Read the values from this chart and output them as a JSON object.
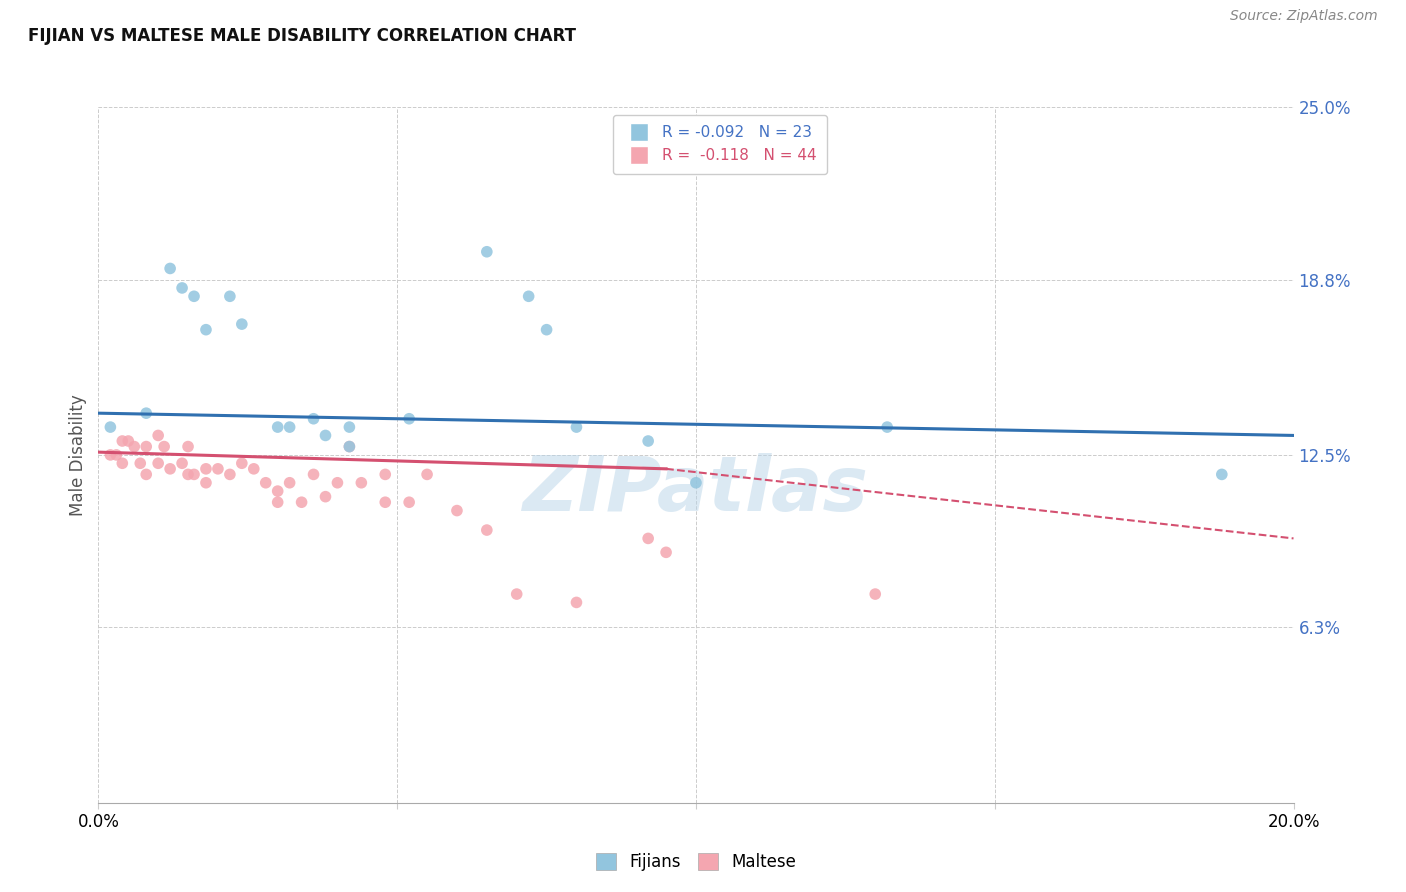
{
  "title": "FIJIAN VS MALTESE MALE DISABILITY CORRELATION CHART",
  "source": "Source: ZipAtlas.com",
  "ylabel": "Male Disability",
  "xlim": [
    0.0,
    0.2
  ],
  "ylim": [
    0.0,
    0.25
  ],
  "yticks": [
    0.063,
    0.125,
    0.188,
    0.25
  ],
  "ytick_labels": [
    "6.3%",
    "12.5%",
    "18.8%",
    "25.0%"
  ],
  "xticks": [
    0.0,
    0.05,
    0.1,
    0.15,
    0.2
  ],
  "xtick_labels": [
    "0.0%",
    "",
    "",
    "",
    "20.0%"
  ],
  "fijian_R": -0.092,
  "fijian_N": 23,
  "maltese_R": -0.118,
  "maltese_N": 44,
  "fijian_color": "#92c5de",
  "maltese_color": "#f4a6b0",
  "trend_fijian_color": "#3070b0",
  "trend_maltese_color": "#d45070",
  "background_color": "#ffffff",
  "grid_color": "#cccccc",
  "fijian_x": [
    0.002,
    0.008,
    0.012,
    0.014,
    0.016,
    0.018,
    0.022,
    0.024,
    0.03,
    0.032,
    0.036,
    0.038,
    0.042,
    0.042,
    0.052,
    0.065,
    0.072,
    0.075,
    0.08,
    0.092,
    0.1,
    0.132,
    0.188
  ],
  "fijian_y": [
    0.135,
    0.14,
    0.192,
    0.185,
    0.182,
    0.17,
    0.182,
    0.172,
    0.135,
    0.135,
    0.138,
    0.132,
    0.135,
    0.128,
    0.138,
    0.198,
    0.182,
    0.17,
    0.135,
    0.13,
    0.115,
    0.135,
    0.118
  ],
  "maltese_x": [
    0.002,
    0.003,
    0.004,
    0.004,
    0.005,
    0.006,
    0.007,
    0.008,
    0.008,
    0.01,
    0.01,
    0.011,
    0.012,
    0.014,
    0.015,
    0.015,
    0.016,
    0.018,
    0.018,
    0.02,
    0.022,
    0.024,
    0.026,
    0.028,
    0.03,
    0.03,
    0.032,
    0.034,
    0.036,
    0.038,
    0.04,
    0.042,
    0.044,
    0.048,
    0.048,
    0.052,
    0.055,
    0.06,
    0.065,
    0.07,
    0.08,
    0.092,
    0.095,
    0.13
  ],
  "maltese_y": [
    0.125,
    0.125,
    0.13,
    0.122,
    0.13,
    0.128,
    0.122,
    0.128,
    0.118,
    0.132,
    0.122,
    0.128,
    0.12,
    0.122,
    0.118,
    0.128,
    0.118,
    0.12,
    0.115,
    0.12,
    0.118,
    0.122,
    0.12,
    0.115,
    0.112,
    0.108,
    0.115,
    0.108,
    0.118,
    0.11,
    0.115,
    0.128,
    0.115,
    0.108,
    0.118,
    0.108,
    0.118,
    0.105,
    0.098,
    0.075,
    0.072,
    0.095,
    0.09,
    0.075
  ],
  "watermark": "ZIPatlas",
  "legend_fijian_label": "Fijians",
  "legend_maltese_label": "Maltese",
  "marker_size": 70,
  "fijian_trend_x0": 0.0,
  "fijian_trend_y0": 0.14,
  "fijian_trend_x1": 0.2,
  "fijian_trend_y1": 0.132,
  "maltese_trend_x0": 0.0,
  "maltese_trend_y0": 0.126,
  "maltese_trend_x1": 0.095,
  "maltese_trend_x1_dash": 0.2,
  "maltese_trend_y1": 0.12,
  "maltese_trend_y1_dash": 0.095
}
